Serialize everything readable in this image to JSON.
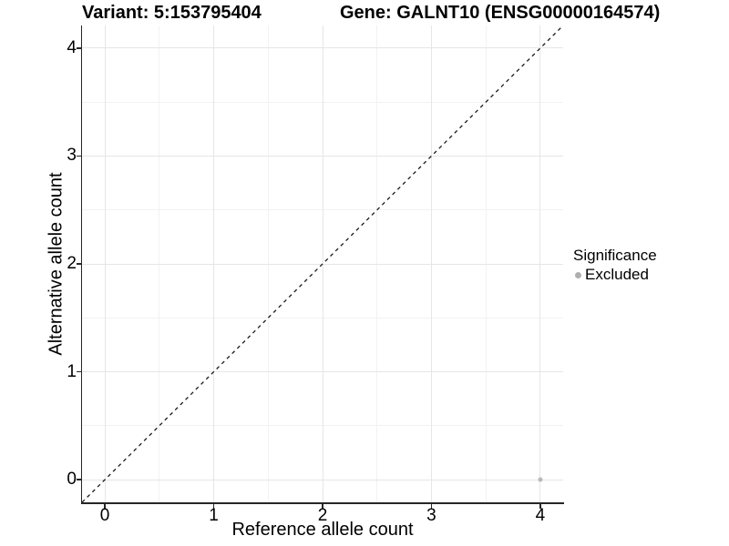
{
  "chart_data": {
    "type": "scatter",
    "title_left": "Variant: 5:153795404",
    "title_right": "Gene: GALNT10 (ENSG00000164574)",
    "xlabel": "Reference allele count",
    "ylabel": "Alternative allele count",
    "xlim": [
      -0.21,
      4.21
    ],
    "ylim": [
      -0.21,
      4.21
    ],
    "x_ticks": [
      "0",
      "1",
      "2",
      "3",
      "4"
    ],
    "y_ticks": [
      "0",
      "1",
      "2",
      "3",
      "4"
    ],
    "x_tick_values": [
      0,
      1,
      2,
      3,
      4
    ],
    "y_tick_values": [
      0,
      1,
      2,
      3,
      4
    ],
    "minor_tick_step": 0.5,
    "grid": "major+minor",
    "series": [
      {
        "name": "Excluded",
        "color": "#b9b9b9",
        "marker": "circle",
        "points": [
          {
            "x": 4,
            "y": 0
          }
        ]
      }
    ],
    "identity_line": {
      "from": [
        -0.21,
        -0.21
      ],
      "to": [
        4.21,
        4.21
      ],
      "style": "dashed",
      "color": "#1a1a1a"
    },
    "legend": {
      "title": "Significance",
      "position": "right",
      "entries": [
        {
          "label": "Excluded",
          "color": "#afafaf"
        }
      ]
    },
    "style": {
      "background": "#ffffff",
      "axis_color": "#262626",
      "grid_major_color": "#e6e6e6",
      "grid_minor_color": "#f2f2f2",
      "text_color": "#000000"
    }
  }
}
